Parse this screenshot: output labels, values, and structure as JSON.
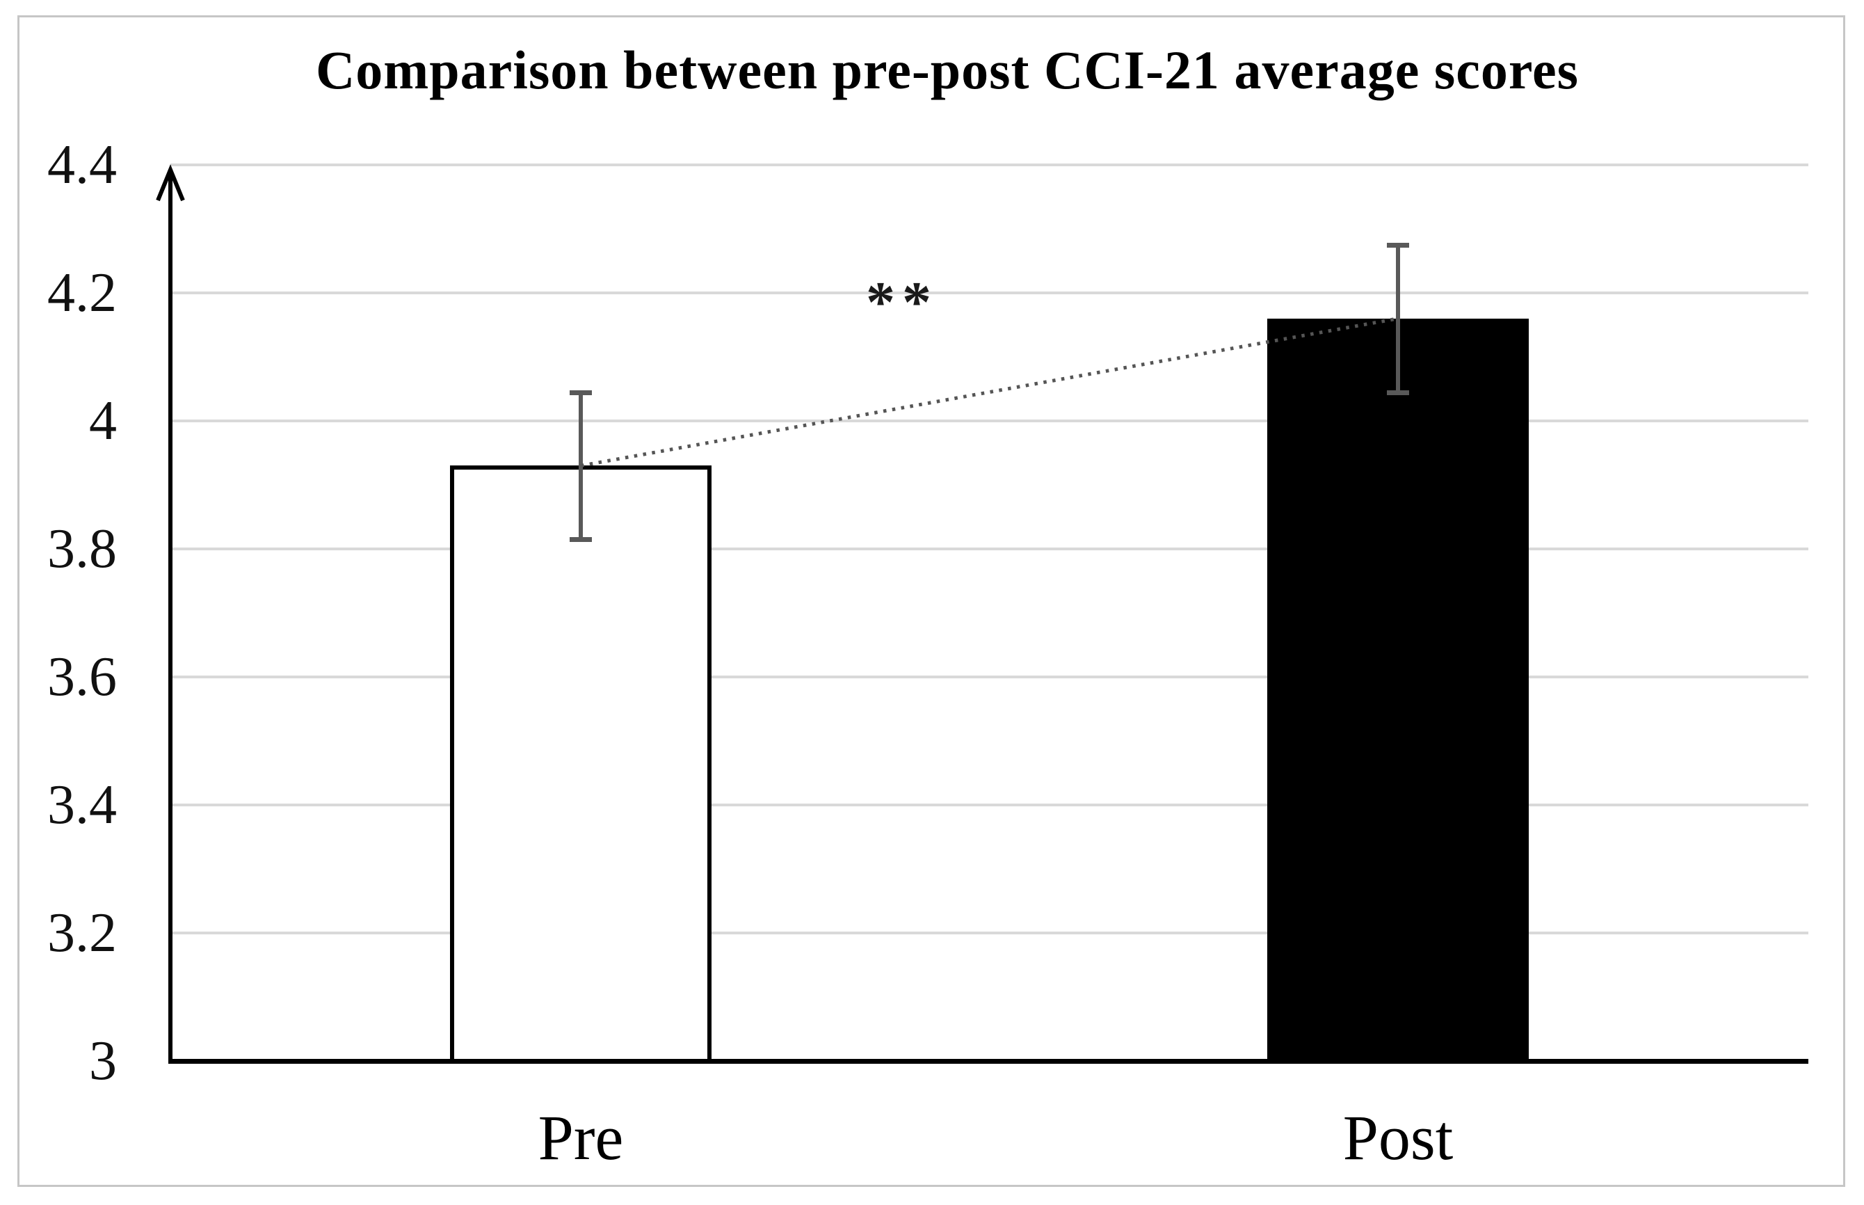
{
  "figure": {
    "title": "Comparison between pre-post CCI-21 average scores"
  },
  "chart_data": {
    "type": "bar",
    "title": "Comparison between pre-post CCI-21 average scores",
    "categories": [
      "Pre",
      "Post"
    ],
    "values": [
      3.93,
      4.16
    ],
    "error_bars": [
      0.115,
      0.115
    ],
    "bar_fill_colors": [
      "#ffffff",
      "#000000"
    ],
    "bar_border_color": "#000000",
    "ylim": [
      3,
      4.4
    ],
    "ytick_step": 0.2,
    "ytick_labels": [
      "3",
      "3.2",
      "3.4",
      "3.6",
      "3.8",
      "4",
      "4.2",
      "4.4"
    ],
    "grid": true,
    "gridline_color": "#d9d9d9",
    "error_bar_color": "#595959",
    "connector": {
      "style": "dotted",
      "from": "Pre",
      "to": "Post",
      "color": "#555555"
    },
    "significance_annotation": "**",
    "axis_color": "#000000",
    "legend_position": "none",
    "xlabel": "",
    "ylabel": ""
  }
}
